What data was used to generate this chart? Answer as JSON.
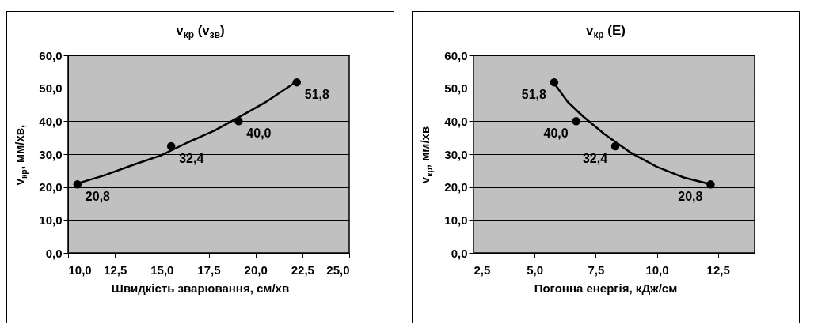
{
  "chart_data": [
    {
      "type": "scatter",
      "title": "v$_{кр}$ (v$_{зв}$)",
      "xlabel": "Швидкість зварювання, см/хв",
      "ylabel": "v$_{кр}$, мм/хв,",
      "grid": "y",
      "xlim": [
        10,
        25
      ],
      "xticks": [
        {
          "value": 10,
          "label": "10,0"
        },
        {
          "value": 12.5,
          "label": "12,5"
        },
        {
          "value": 15,
          "label": "15,0"
        },
        {
          "value": 17.5,
          "label": "17,5"
        },
        {
          "value": 20,
          "label": "20,0"
        },
        {
          "value": 22.5,
          "label": "22,5"
        },
        {
          "value": 25,
          "label": "25,0"
        }
      ],
      "ylim": [
        0,
        60
      ],
      "yticks": [
        {
          "value": 0,
          "label": "0,0"
        },
        {
          "value": 10,
          "label": "10,0"
        },
        {
          "value": 20,
          "label": "20,0"
        },
        {
          "value": 30,
          "label": "30,0"
        },
        {
          "value": 40,
          "label": "40,0"
        },
        {
          "value": 50,
          "label": "50,0"
        },
        {
          "value": 60,
          "label": "60,0"
        }
      ],
      "series": [
        {
          "type": "scatter",
          "marker": "circle",
          "color": "#000000",
          "x": [
            10.5,
            15.5,
            19.1,
            22.2
          ],
          "values": [
            20.8,
            32.4,
            40.0,
            51.8
          ],
          "value_labels": [
            "20,8",
            "32,4",
            "40,0",
            "51,8"
          ]
        },
        {
          "type": "line",
          "color": "#000000",
          "x": [
            10.5,
            11.9,
            13.6,
            14.95,
            16.4,
            17.8,
            19.2,
            20.6,
            22.2
          ],
          "values": [
            21.1,
            23.5,
            27.0,
            29.6,
            33.6,
            37.1,
            41.5,
            46.0,
            52.1
          ]
        }
      ]
    },
    {
      "type": "scatter",
      "title": "v$_{кр}$ (E)",
      "xlabel": "Погонна енергія, кДж/см",
      "ylabel": "v$_{кр}$, мм/хв",
      "grid": "y",
      "xlim": [
        2.5,
        14
      ],
      "xticks": [
        {
          "value": 2.5,
          "label": "2,5"
        },
        {
          "value": 5,
          "label": "5,0"
        },
        {
          "value": 7.5,
          "label": "7,5"
        },
        {
          "value": 10,
          "label": "10,0"
        },
        {
          "value": 12.5,
          "label": "12,5"
        }
      ],
      "ylim": [
        0,
        60
      ],
      "yticks": [
        {
          "value": 0,
          "label": "0,0"
        },
        {
          "value": 10,
          "label": "10,0"
        },
        {
          "value": 20,
          "label": "20,0"
        },
        {
          "value": 30,
          "label": "30,0"
        },
        {
          "value": 40,
          "label": "40,0"
        },
        {
          "value": 50,
          "label": "50,0"
        },
        {
          "value": 60,
          "label": "60,0"
        }
      ],
      "series": [
        {
          "type": "scatter",
          "marker": "circle",
          "color": "#000000",
          "x": [
            5.8,
            6.7,
            8.3,
            12.2
          ],
          "values": [
            51.8,
            40.0,
            32.4,
            20.8
          ],
          "value_labels": [
            "51,8",
            "40,0",
            "32,4",
            "20,8"
          ]
        },
        {
          "type": "line",
          "color": "#000000",
          "x": [
            5.84,
            6.35,
            6.99,
            7.85,
            8.92,
            9.99,
            11.06,
            12.18
          ],
          "values": [
            51.1,
            45.9,
            41.4,
            36.1,
            30.5,
            26.2,
            23.0,
            20.9
          ]
        }
      ]
    }
  ]
}
